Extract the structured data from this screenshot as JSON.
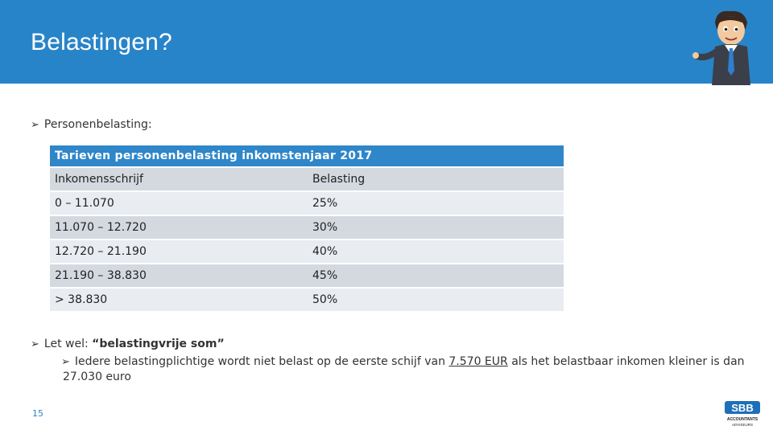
{
  "title": "Belastingen?",
  "bullet1": "Personenbelasting:",
  "table": {
    "header": "Tarieven personenbelasting inkomstenjaar 2017",
    "columns": [
      "Inkomensschrijf",
      "Belasting"
    ],
    "rows": [
      [
        "0 – 11.070",
        "25%"
      ],
      [
        "11.070 – 12.720",
        "30%"
      ],
      [
        "12.720 – 21.190",
        "40%"
      ],
      [
        "21.190 – 38.830",
        "45%"
      ],
      [
        "> 38.830",
        "50%"
      ]
    ]
  },
  "bullet2": {
    "prefix": "Let wel: ",
    "bold": "“belastingvrije som”"
  },
  "subbullet": {
    "before": "Iedere belastingplichtige wordt niet belast op de eerste schijf van ",
    "underlined": "7.570 EUR",
    "after": " als het belastbaar inkomen kleiner is dan 27.030 euro"
  },
  "page_number": "15",
  "logo": {
    "letters": "SBB",
    "line1": "ACCOUNTANTS",
    "line2": "ADVISEURS"
  },
  "colors": {
    "header": "#2884c8",
    "table_header": "#2f86c9",
    "row_dark": "#d4d9e0",
    "row_light": "#e9ecf0"
  }
}
